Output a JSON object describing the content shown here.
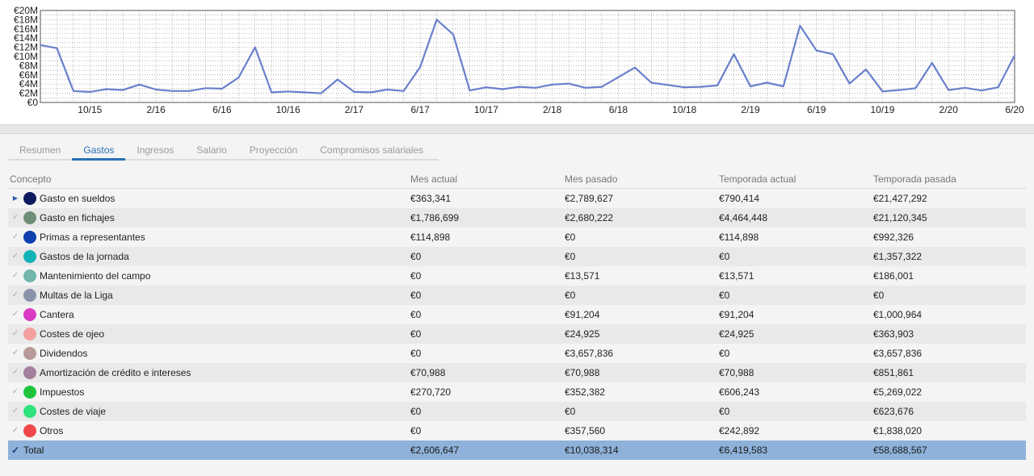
{
  "chart_data": {
    "type": "line",
    "y_ticks": [
      "€0",
      "€2M",
      "€4M",
      "€6M",
      "€8M",
      "€10M",
      "€12M",
      "€14M",
      "€16M",
      "€18M",
      "€20M"
    ],
    "ylim": [
      0,
      20
    ],
    "y_unit": "M€",
    "x_labels": [
      "10/15",
      "2/16",
      "6/16",
      "10/16",
      "2/17",
      "6/17",
      "10/17",
      "2/18",
      "6/18",
      "10/18",
      "2/19",
      "6/19",
      "10/19",
      "2/20",
      "6/20"
    ],
    "x_label_index": [
      3,
      7,
      11,
      15,
      19,
      23,
      27,
      31,
      35,
      39,
      43,
      47,
      51,
      55,
      59
    ],
    "grid": true,
    "line_color": "#6a80cc",
    "values": [
      12.5,
      11.8,
      2.5,
      2.3,
      2.9,
      2.7,
      3.9,
      2.8,
      2.5,
      2.5,
      3.1,
      3.0,
      5.4,
      12.0,
      2.2,
      2.4,
      2.2,
      2.0,
      5.0,
      2.3,
      2.2,
      2.8,
      2.5,
      7.7,
      18.0,
      14.8,
      2.6,
      3.3,
      2.9,
      3.4,
      3.2,
      3.9,
      4.1,
      3.2,
      3.4,
      5.5,
      7.6,
      4.3,
      3.8,
      3.3,
      3.4,
      3.7,
      10.5,
      3.5,
      4.3,
      3.5,
      16.7,
      11.3,
      10.5,
      4.1,
      7.2,
      2.4,
      2.7,
      3.1,
      8.6,
      2.7,
      3.2,
      2.6,
      3.3,
      10.2
    ]
  },
  "tabs": [
    {
      "label": "Resumen",
      "active": false
    },
    {
      "label": "Gastos",
      "active": true
    },
    {
      "label": "Ingresos",
      "active": false
    },
    {
      "label": "Salario",
      "active": false
    },
    {
      "label": "Proyección",
      "active": false
    },
    {
      "label": "Compromisos salariales",
      "active": false
    }
  ],
  "table": {
    "headers": [
      "Concepto",
      "Mes actual",
      "Mes pasado",
      "Temporada actual",
      "Temporada pasada"
    ],
    "rows": [
      {
        "concept": "Gasto en sueldos",
        "color": "#0d1a5e",
        "control": "expand",
        "values": [
          "€363,341",
          "€2,789,627",
          "€790,414",
          "€21,427,292"
        ]
      },
      {
        "concept": "Gasto en fichajes",
        "color": "#6e8e77",
        "control": "check",
        "values": [
          "€1,786,699",
          "€2,680,222",
          "€4,464,448",
          "€21,120,345"
        ]
      },
      {
        "concept": "Primas a representantes",
        "color": "#0d3fae",
        "control": "check",
        "values": [
          "€114,898",
          "€0",
          "€114,898",
          "€992,326"
        ]
      },
      {
        "concept": "Gastos de la jornada",
        "color": "#12b3b6",
        "control": "check",
        "values": [
          "€0",
          "€0",
          "€0",
          "€1,357,322"
        ]
      },
      {
        "concept": "Mantenimiento del campo",
        "color": "#72b6ae",
        "control": "check",
        "values": [
          "€0",
          "€13,571",
          "€13,571",
          "€186,001"
        ]
      },
      {
        "concept": "Multas de la Liga",
        "color": "#8a93aa",
        "control": "check",
        "values": [
          "€0",
          "€0",
          "€0",
          "€0"
        ]
      },
      {
        "concept": "Cantera",
        "color": "#d93bc2",
        "control": "check",
        "values": [
          "€0",
          "€91,204",
          "€91,204",
          "€1,000,964"
        ]
      },
      {
        "concept": "Costes de ojeo",
        "color": "#f4a0a0",
        "control": "check",
        "values": [
          "€0",
          "€24,925",
          "€24,925",
          "€363,903"
        ]
      },
      {
        "concept": "Dividendos",
        "color": "#b89a98",
        "control": "check",
        "values": [
          "€0",
          "€3,657,836",
          "€0",
          "€3,657,836"
        ]
      },
      {
        "concept": "Amortización de crédito e intereses",
        "color": "#a47f9e",
        "control": "check",
        "values": [
          "€70,988",
          "€70,988",
          "€70,988",
          "€851,861"
        ]
      },
      {
        "concept": "Impuestos",
        "color": "#1ec43c",
        "control": "check",
        "values": [
          "€270,720",
          "€352,382",
          "€606,243",
          "€5,269,022"
        ]
      },
      {
        "concept": "Costes de viaje",
        "color": "#2ee37a",
        "control": "check",
        "values": [
          "€0",
          "€0",
          "€0",
          "€623,676"
        ]
      },
      {
        "concept": "Otros",
        "color": "#f04848",
        "control": "check",
        "values": [
          "€0",
          "€357,560",
          "€242,892",
          "€1,838,020"
        ]
      }
    ],
    "total": {
      "concept": "Total",
      "values": [
        "€2,606,647",
        "€10,038,314",
        "€6,419,583",
        "€58,688,567"
      ]
    }
  }
}
